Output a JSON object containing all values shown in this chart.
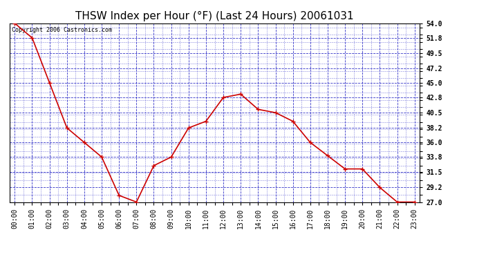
{
  "title": "THSW Index per Hour (°F) (Last 24 Hours) 20061031",
  "copyright_text": "Copyright 2006 Castronics.com",
  "x_labels": [
    "00:00",
    "01:00",
    "02:00",
    "03:00",
    "04:00",
    "05:00",
    "06:00",
    "07:00",
    "08:00",
    "09:00",
    "10:00",
    "11:00",
    "12:00",
    "13:00",
    "14:00",
    "15:00",
    "16:00",
    "17:00",
    "18:00",
    "19:00",
    "20:00",
    "21:00",
    "22:00",
    "23:00"
  ],
  "x_values": [
    0,
    1,
    2,
    3,
    4,
    5,
    6,
    7,
    8,
    9,
    10,
    11,
    12,
    13,
    14,
    15,
    16,
    17,
    18,
    19,
    20,
    21,
    22,
    23
  ],
  "y_values": [
    54.0,
    51.8,
    45.0,
    38.2,
    36.0,
    33.8,
    28.0,
    27.0,
    32.5,
    33.8,
    38.2,
    39.2,
    42.8,
    43.3,
    41.0,
    40.5,
    39.2,
    36.0,
    34.0,
    32.0,
    32.0,
    29.2,
    27.0,
    27.0
  ],
  "ylim_min": 27.0,
  "ylim_max": 54.0,
  "yticks": [
    27.0,
    29.2,
    31.5,
    33.8,
    36.0,
    38.2,
    40.5,
    42.8,
    45.0,
    47.2,
    49.5,
    51.8,
    54.0
  ],
  "line_color": "#cc0000",
  "marker_color": "#cc0000",
  "bg_color": "#ffffff",
  "plot_bg_color": "#ffffff",
  "grid_color": "#0000bb",
  "title_color": "#000000",
  "border_color": "#000000",
  "title_fontsize": 11,
  "tick_fontsize": 7,
  "copyright_fontsize": 6
}
